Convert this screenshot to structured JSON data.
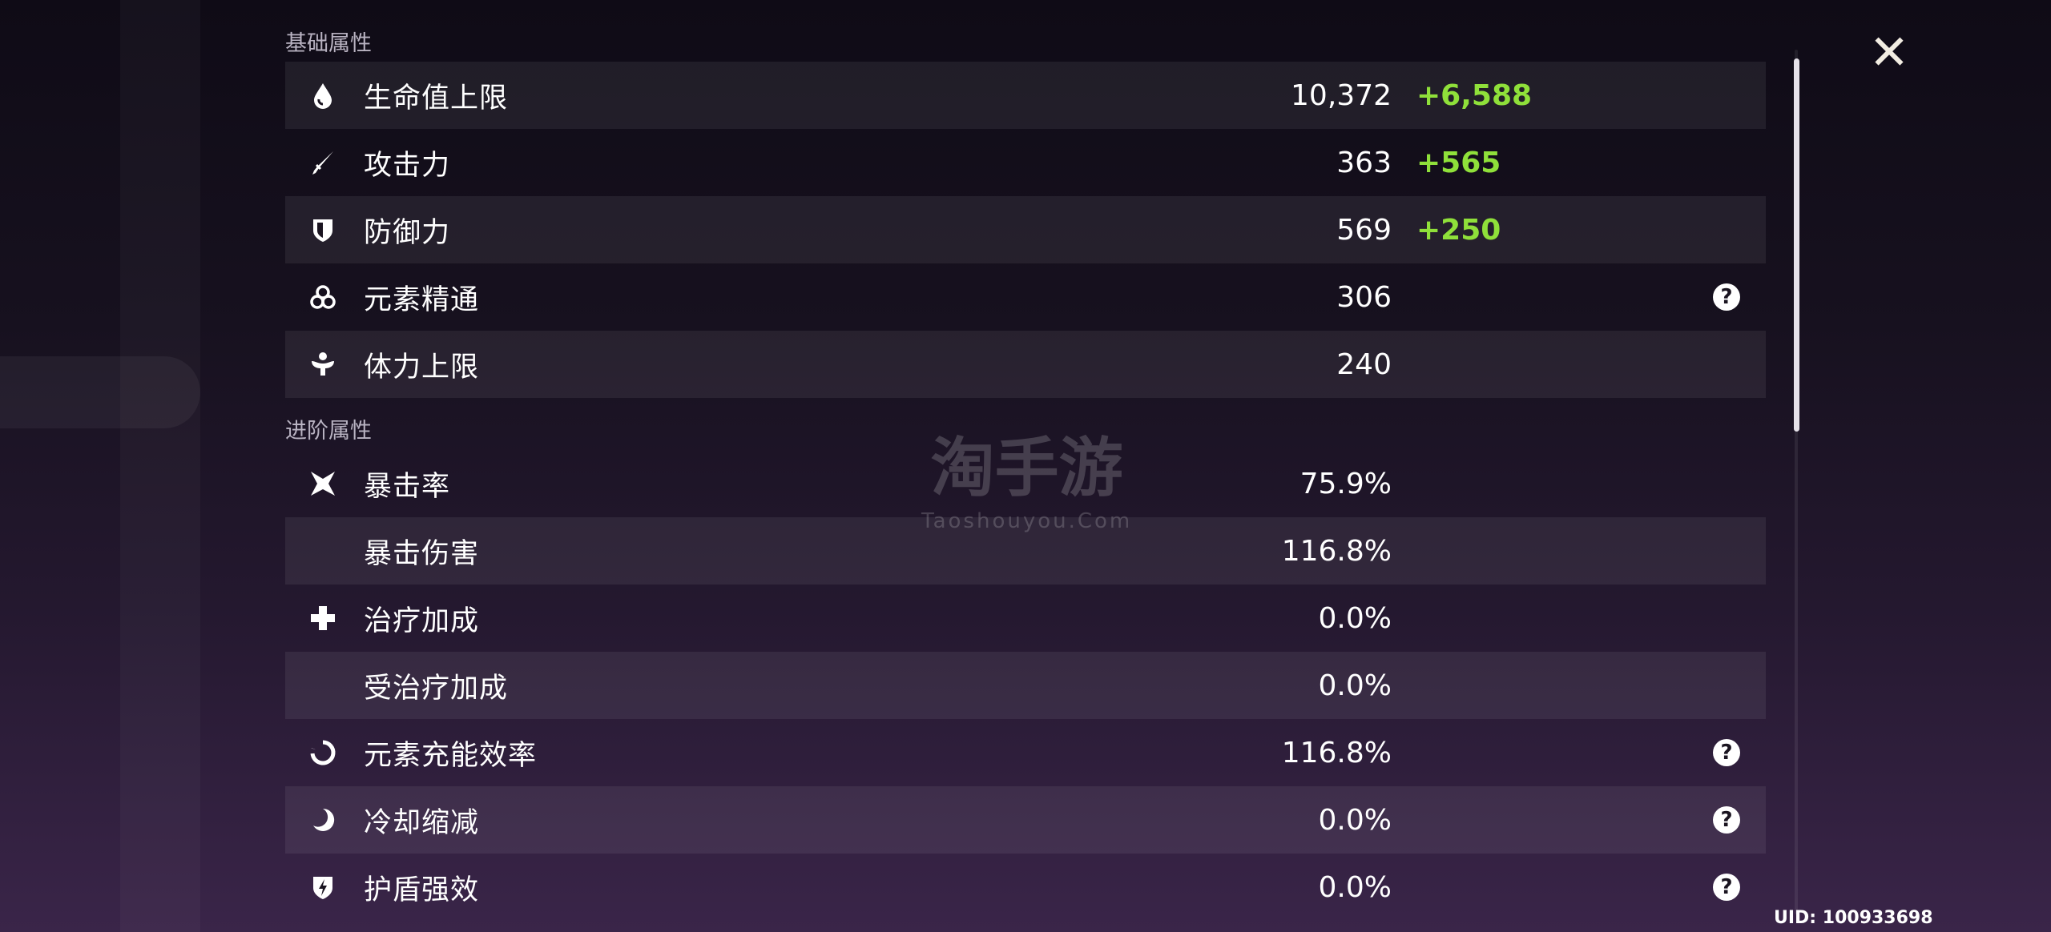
{
  "sections": {
    "basic": "基础属性",
    "advanced": "进阶属性"
  },
  "basic": [
    {
      "icon": "hp-drop-icon",
      "label": "生命值上限",
      "value": "10,372",
      "bonus": "+6,588",
      "help": false
    },
    {
      "icon": "attack-sword-icon",
      "label": "攻击力",
      "value": "363",
      "bonus": "+565",
      "help": false
    },
    {
      "icon": "defense-shield-icon",
      "label": "防御力",
      "value": "569",
      "bonus": "+250",
      "help": false
    },
    {
      "icon": "elemental-mastery-icon",
      "label": "元素精通",
      "value": "306",
      "bonus": "",
      "help": true
    },
    {
      "icon": "stamina-icon",
      "label": "体力上限",
      "value": "240",
      "bonus": "",
      "help": false
    }
  ],
  "advanced": [
    {
      "icon": "crit-star-icon",
      "label": "暴击率",
      "value": "75.9%",
      "help": false
    },
    {
      "icon": "",
      "label": "暴击伤害",
      "value": "116.8%",
      "help": false
    },
    {
      "icon": "healing-cross-icon",
      "label": "治疗加成",
      "value": "0.0%",
      "help": false
    },
    {
      "icon": "",
      "label": "受治疗加成",
      "value": "0.0%",
      "help": false
    },
    {
      "icon": "energy-recharge-icon",
      "label": "元素充能效率",
      "value": "116.8%",
      "help": true
    },
    {
      "icon": "cooldown-icon",
      "label": "冷却缩减",
      "value": "0.0%",
      "help": true
    },
    {
      "icon": "shield-strength-icon",
      "label": "护盾强效",
      "value": "0.0%",
      "help": true
    }
  ],
  "help_glyph": "?",
  "close_glyph": "✕",
  "uid": "UID: 100933698",
  "watermark": {
    "main": "淘手游",
    "sub": "Taoshouyou.Com"
  },
  "colors": {
    "bonus": "#8fe03a",
    "background": "#17111f"
  }
}
